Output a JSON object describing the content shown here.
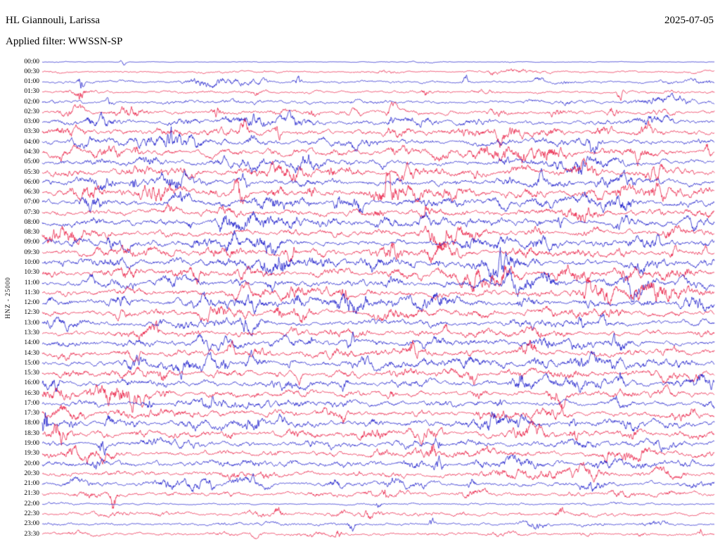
{
  "header": {
    "station": "HL Giannouli, Larissa",
    "date": "2025-07-05",
    "filter_label": "Applied filter: WWSSN-SP"
  },
  "colors": {
    "trace_blue": "#1212c8",
    "trace_red": "#e8143c",
    "text": "#000000",
    "background": "#ffffff"
  },
  "chart_data": {
    "type": "line",
    "variant": "helicorder-day-plot",
    "title": "HL Giannouli, Larissa",
    "date": "2025-07-05",
    "applied_filter": "WWSSN-SP",
    "channel": "HNZ",
    "scale": 25000,
    "y_axis_label": "HNZ - 25000",
    "row_interval_minutes": 30,
    "legend": "alternating blue/red traces per 30-minute row; events = [position 0-1, amplitude px, width px]",
    "rows": [
      {
        "time": "00:00",
        "color": "blue",
        "activity": 0.2,
        "events": [
          [
            0.12,
            5,
            4
          ]
        ]
      },
      {
        "time": "00:30",
        "color": "red",
        "activity": 0.55,
        "events": [
          [
            0.67,
            7,
            5
          ]
        ]
      },
      {
        "time": "01:00",
        "color": "blue",
        "activity": 0.7,
        "events": [
          [
            0.058,
            15,
            4
          ],
          [
            0.38,
            6,
            6
          ],
          [
            0.63,
            7,
            5
          ],
          [
            0.74,
            7,
            5
          ]
        ]
      },
      {
        "time": "01:30",
        "color": "red",
        "activity": 0.8,
        "events": [
          [
            0.058,
            9,
            4
          ],
          [
            0.57,
            6,
            5
          ],
          [
            0.86,
            6,
            5
          ]
        ]
      },
      {
        "time": "02:00",
        "color": "blue",
        "activity": 0.9,
        "events": [
          [
            0.1,
            5,
            5
          ]
        ]
      },
      {
        "time": "02:30",
        "color": "red",
        "activity": 1.2,
        "events": [
          [
            0.26,
            8,
            8
          ],
          [
            0.4,
            7,
            6
          ],
          [
            0.52,
            8,
            6
          ],
          [
            0.85,
            8,
            6
          ]
        ]
      },
      {
        "time": "03:00",
        "color": "blue",
        "activity": 1.3,
        "events": [
          [
            0.07,
            7,
            6
          ],
          [
            0.52,
            7,
            5
          ]
        ]
      },
      {
        "time": "03:30",
        "color": "red",
        "activity": 1.5,
        "events": [
          [
            0.3,
            10,
            7
          ],
          [
            0.35,
            9,
            5
          ],
          [
            0.68,
            8,
            5
          ],
          [
            0.9,
            9,
            6
          ]
        ]
      },
      {
        "time": "04:00",
        "color": "blue",
        "activity": 1.6,
        "events": [
          [
            0.19,
            10,
            5
          ],
          [
            0.31,
            8,
            6
          ],
          [
            0.82,
            8,
            5
          ]
        ]
      },
      {
        "time": "04:30",
        "color": "red",
        "activity": 1.5,
        "events": [
          [
            0.14,
            8,
            5
          ],
          [
            0.52,
            7,
            5
          ],
          [
            0.99,
            9,
            4
          ]
        ]
      },
      {
        "time": "05:00",
        "color": "blue",
        "activity": 1.5,
        "events": [
          [
            0.8,
            9,
            6
          ]
        ]
      },
      {
        "time": "05:30",
        "color": "red",
        "activity": 1.5,
        "events": [
          [
            0.43,
            8,
            5
          ],
          [
            0.92,
            10,
            6
          ]
        ]
      },
      {
        "time": "06:00",
        "color": "blue",
        "activity": 1.7,
        "events": [
          [
            0.136,
            17,
            4
          ],
          [
            0.3,
            9,
            6
          ],
          [
            0.74,
            9,
            5
          ]
        ]
      },
      {
        "time": "06:30",
        "color": "red",
        "activity": 1.8,
        "events": [
          [
            0.29,
            10,
            6
          ],
          [
            0.4,
            12,
            6
          ],
          [
            0.515,
            22,
            6
          ]
        ]
      },
      {
        "time": "07:00",
        "color": "blue",
        "activity": 1.7,
        "events": [
          [
            0.44,
            10,
            5
          ],
          [
            0.47,
            12,
            8
          ]
        ]
      },
      {
        "time": "07:30",
        "color": "red",
        "activity": 1.6,
        "events": [
          [
            0.5,
            8,
            5
          ],
          [
            0.57,
            9,
            5
          ]
        ]
      },
      {
        "time": "08:00",
        "color": "blue",
        "activity": 1.6,
        "events": [
          [
            0.27,
            8,
            5
          ],
          [
            0.77,
            9,
            6
          ],
          [
            0.97,
            9,
            5
          ]
        ]
      },
      {
        "time": "08:30",
        "color": "red",
        "activity": 1.5,
        "events": [
          [
            0.93,
            8,
            5
          ]
        ]
      },
      {
        "time": "09:00",
        "color": "blue",
        "activity": 1.7,
        "events": [
          [
            0.1,
            8,
            5
          ],
          [
            0.28,
            8,
            5
          ],
          [
            0.91,
            10,
            6
          ]
        ]
      },
      {
        "time": "09:30",
        "color": "red",
        "activity": 1.7,
        "events": [
          [
            0.37,
            13,
            7
          ],
          [
            0.52,
            9,
            5
          ],
          [
            0.94,
            10,
            5
          ]
        ]
      },
      {
        "time": "10:00",
        "color": "blue",
        "activity": 1.7,
        "events": [
          [
            0.33,
            9,
            6
          ],
          [
            0.67,
            8,
            5
          ]
        ]
      },
      {
        "time": "10:30",
        "color": "red",
        "activity": 1.7,
        "events": [
          [
            0.23,
            12,
            7
          ],
          [
            0.96,
            10,
            5
          ]
        ]
      },
      {
        "time": "11:00",
        "color": "blue",
        "activity": 1.7,
        "events": [
          [
            0.34,
            9,
            6
          ],
          [
            0.88,
            10,
            6
          ]
        ]
      },
      {
        "time": "11:30",
        "color": "red",
        "activity": 1.7,
        "events": [
          [
            0.45,
            9,
            5
          ],
          [
            0.81,
            10,
            6
          ]
        ]
      },
      {
        "time": "12:00",
        "color": "blue",
        "activity": 1.6,
        "events": [
          [
            0.38,
            9,
            6
          ],
          [
            0.48,
            8,
            5
          ]
        ]
      },
      {
        "time": "12:30",
        "color": "red",
        "activity": 1.5,
        "events": [
          [
            0.35,
            8,
            5
          ]
        ]
      },
      {
        "time": "13:00",
        "color": "blue",
        "activity": 1.5,
        "events": [
          [
            0.3,
            8,
            5
          ],
          [
            0.8,
            9,
            6
          ]
        ]
      },
      {
        "time": "13:30",
        "color": "red",
        "activity": 1.5,
        "events": [
          [
            0.17,
            8,
            5
          ],
          [
            0.6,
            8,
            5
          ]
        ]
      },
      {
        "time": "14:00",
        "color": "blue",
        "activity": 1.5,
        "events": [
          [
            0.4,
            8,
            5
          ]
        ]
      },
      {
        "time": "14:30",
        "color": "red",
        "activity": 1.6,
        "events": [
          [
            0.28,
            11,
            6
          ],
          [
            0.55,
            9,
            5
          ],
          [
            0.73,
            8,
            5
          ]
        ]
      },
      {
        "time": "15:00",
        "color": "blue",
        "activity": 1.5,
        "events": [
          [
            0.27,
            9,
            5
          ]
        ]
      },
      {
        "time": "15:30",
        "color": "red",
        "activity": 1.5,
        "events": [
          [
            0.18,
            8,
            5
          ],
          [
            0.64,
            8,
            5
          ]
        ]
      },
      {
        "time": "16:00",
        "color": "blue",
        "activity": 1.6,
        "events": [
          [
            0.02,
            9,
            5
          ],
          [
            0.45,
            8,
            5
          ],
          [
            0.86,
            10,
            6
          ]
        ]
      },
      {
        "time": "16:30",
        "color": "red",
        "activity": 1.5,
        "events": [
          [
            0.52,
            9,
            5
          ]
        ]
      },
      {
        "time": "17:00",
        "color": "blue",
        "activity": 1.4,
        "events": [
          [
            0.16,
            8,
            5
          ],
          [
            0.68,
            8,
            5
          ]
        ]
      },
      {
        "time": "17:30",
        "color": "red",
        "activity": 1.4,
        "events": [
          [
            0.45,
            8,
            5
          ],
          [
            0.65,
            8,
            5
          ]
        ]
      },
      {
        "time": "18:00",
        "color": "blue",
        "activity": 1.6,
        "events": [
          [
            0.004,
            27,
            4
          ],
          [
            0.1,
            9,
            5
          ],
          [
            0.32,
            9,
            5
          ],
          [
            0.79,
            9,
            5
          ]
        ]
      },
      {
        "time": "18:30",
        "color": "red",
        "activity": 1.6,
        "events": [
          [
            0.28,
            9,
            5
          ],
          [
            0.79,
            12,
            6
          ],
          [
            0.88,
            9,
            5
          ]
        ]
      },
      {
        "time": "19:00",
        "color": "blue",
        "activity": 1.5,
        "events": [
          [
            0.09,
            10,
            6
          ],
          [
            0.59,
            9,
            5
          ]
        ]
      },
      {
        "time": "19:30",
        "color": "red",
        "activity": 1.4,
        "events": [
          [
            0.58,
            9,
            5
          ],
          [
            0.84,
            9,
            5
          ]
        ]
      },
      {
        "time": "20:00",
        "color": "blue",
        "activity": 1.5,
        "events": [
          [
            0.08,
            9,
            5
          ],
          [
            0.59,
            11,
            6
          ]
        ]
      },
      {
        "time": "20:30",
        "color": "red",
        "activity": 1.3,
        "events": [
          [
            0.33,
            8,
            5
          ]
        ]
      },
      {
        "time": "21:00",
        "color": "blue",
        "activity": 1.2,
        "events": [
          [
            0.25,
            7,
            5
          ],
          [
            0.64,
            7,
            5
          ]
        ]
      },
      {
        "time": "21:30",
        "color": "red",
        "activity": 1.1,
        "events": [
          [
            0.105,
            17,
            5
          ],
          [
            0.51,
            7,
            5
          ]
        ]
      },
      {
        "time": "22:00",
        "color": "blue",
        "activity": 0.45,
        "events": [
          [
            0.5,
            6,
            4
          ]
        ]
      },
      {
        "time": "22:30",
        "color": "red",
        "activity": 0.9,
        "events": [
          [
            0.35,
            7,
            5
          ],
          [
            0.77,
            8,
            5
          ]
        ]
      },
      {
        "time": "23:00",
        "color": "blue",
        "activity": 0.8,
        "events": [
          [
            0.46,
            8,
            5
          ],
          [
            0.58,
            7,
            4
          ]
        ]
      },
      {
        "time": "23:30",
        "color": "red",
        "activity": 0.85,
        "events": [
          [
            0.44,
            7,
            5
          ],
          [
            0.98,
            7,
            4
          ]
        ]
      }
    ]
  }
}
